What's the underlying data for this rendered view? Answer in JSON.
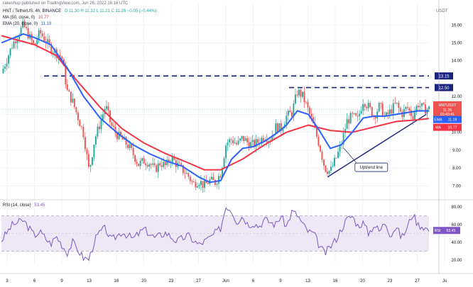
{
  "header": {
    "publisher": "rakeshup published on TradingView.com, Jun 26, 2022 16:16 UTC",
    "symbol": "HNT / TetherUS, 4h, BINANCE",
    "ohlc": "O 11.30  H 11.32  L 11.21  C 11.26  −0.05 (−0.44%)",
    "ma_legend": "MA (50, close, 0)",
    "ma_value": "10.77",
    "ema_legend": "EMA (20, close, 0)",
    "ema_value": "11.19",
    "rsi_legend": "RSI (14, close)",
    "rsi_value": "53.45",
    "currency": "USDT"
  },
  "colors": {
    "up": "#26a69a",
    "down": "#ef5350",
    "ema": "#2962ff",
    "sma": "#f23645",
    "rsi": "#7e57c2",
    "level": "#1a237e",
    "rsi_band": "#ede7f6"
  },
  "annotation": {
    "label": "Uptrend line"
  },
  "chart_data": [
    {
      "type": "candlestick",
      "title": "HNT / TetherUS, 4h",
      "price_axis_ticks": [
        "16.00",
        "15.00",
        "14.00",
        "12.00",
        "11.00",
        "10.00",
        "9.00",
        "8.00",
        "7.00"
      ],
      "price_axis_labels": [
        "13.15",
        "12.50",
        "HNTUSDT",
        "11.26",
        "03:43:41",
        "EMA",
        "11.19",
        "MA",
        "10.77"
      ],
      "horizontal_levels": [
        13.15,
        12.5
      ],
      "trendline": {
        "from": [
          "Jun 13",
          7.5
        ],
        "to": [
          "Jun 26",
          11.0
        ]
      },
      "time_ticks": [
        "3",
        "6",
        "9",
        "13",
        "16",
        "20",
        "23",
        "27",
        "Jun",
        "6",
        "9",
        "13",
        "16",
        "20",
        "23",
        "27",
        "Ju"
      ],
      "ylim": [
        6.3,
        17.2
      ],
      "close_path": [
        [
          0,
          13.3
        ],
        [
          2,
          14.9
        ],
        [
          4,
          16.0
        ],
        [
          6,
          14.8
        ],
        [
          7,
          15.6
        ],
        [
          9,
          14.7
        ],
        [
          11,
          14.2
        ],
        [
          12,
          12.3
        ],
        [
          13,
          11.7
        ],
        [
          15,
          9.9
        ],
        [
          16,
          7.8
        ],
        [
          17,
          9.6
        ],
        [
          18,
          10.5
        ],
        [
          19,
          11.5
        ],
        [
          20,
          10.4
        ],
        [
          21,
          9.9
        ],
        [
          22,
          9.6
        ],
        [
          23,
          9.3
        ],
        [
          24,
          8.8
        ],
        [
          25,
          8.2
        ],
        [
          26,
          8.4
        ],
        [
          27,
          8.3
        ],
        [
          28,
          7.9
        ],
        [
          29,
          8.3
        ],
        [
          30,
          8.1
        ],
        [
          31,
          8.6
        ],
        [
          32,
          8.2
        ],
        [
          33,
          7.9
        ],
        [
          34,
          7.6
        ],
        [
          35,
          7.1
        ],
        [
          36,
          7.3
        ],
        [
          37,
          7.0
        ],
        [
          38,
          7.3
        ],
        [
          39,
          7.2
        ],
        [
          40,
          7.7
        ],
        [
          41,
          9.4
        ],
        [
          42,
          9.6
        ],
        [
          43,
          9.3
        ],
        [
          44,
          9.7
        ],
        [
          45,
          9.4
        ],
        [
          46,
          9.3
        ],
        [
          47,
          9.5
        ],
        [
          48,
          9.8
        ],
        [
          49,
          9.6
        ],
        [
          50,
          10.3
        ],
        [
          51,
          10.2
        ],
        [
          52,
          10.9
        ],
        [
          53,
          11.1
        ],
        [
          54,
          12.3
        ],
        [
          55,
          12.0
        ],
        [
          56,
          11.2
        ],
        [
          57,
          10.3
        ],
        [
          58,
          9.3
        ],
        [
          59,
          8.0
        ],
        [
          60,
          7.8
        ],
        [
          61,
          8.5
        ],
        [
          62,
          9.3
        ],
        [
          63,
          10.6
        ],
        [
          64,
          10.9
        ],
        [
          65,
          10.7
        ],
        [
          66,
          11.8
        ],
        [
          67,
          11.4
        ],
        [
          68,
          10.9
        ],
        [
          69,
          11.5
        ],
        [
          70,
          10.8
        ],
        [
          71,
          11.2
        ],
        [
          72,
          11.6
        ],
        [
          73,
          11.0
        ],
        [
          74,
          11.4
        ],
        [
          75,
          10.9
        ],
        [
          76,
          11.6
        ],
        [
          77,
          11.3
        ],
        [
          78,
          11.3
        ]
      ],
      "ema20_path": [
        [
          0,
          15.0
        ],
        [
          4,
          15.5
        ],
        [
          6,
          15.3
        ],
        [
          9,
          14.9
        ],
        [
          12,
          13.6
        ],
        [
          15,
          12.0
        ],
        [
          18,
          10.8
        ],
        [
          21,
          10.0
        ],
        [
          24,
          9.3
        ],
        [
          27,
          8.8
        ],
        [
          30,
          8.4
        ],
        [
          33,
          8.1
        ],
        [
          36,
          7.5
        ],
        [
          38,
          7.2
        ],
        [
          40,
          7.3
        ],
        [
          42,
          8.5
        ],
        [
          44,
          9.1
        ],
        [
          46,
          9.2
        ],
        [
          48,
          9.5
        ],
        [
          50,
          9.9
        ],
        [
          52,
          10.4
        ],
        [
          54,
          11.2
        ],
        [
          56,
          11.0
        ],
        [
          58,
          10.1
        ],
        [
          60,
          9.1
        ],
        [
          62,
          9.3
        ],
        [
          64,
          10.0
        ],
        [
          66,
          10.8
        ],
        [
          68,
          10.9
        ],
        [
          70,
          10.9
        ],
        [
          72,
          11.0
        ],
        [
          74,
          11.1
        ],
        [
          76,
          11.2
        ],
        [
          78,
          11.19
        ]
      ],
      "sma50_path": [
        [
          0,
          15.4
        ],
        [
          6,
          14.9
        ],
        [
          10,
          14.3
        ],
        [
          14,
          12.8
        ],
        [
          18,
          11.4
        ],
        [
          22,
          10.2
        ],
        [
          26,
          9.4
        ],
        [
          30,
          8.8
        ],
        [
          34,
          8.3
        ],
        [
          37,
          7.9
        ],
        [
          40,
          7.9
        ],
        [
          44,
          8.5
        ],
        [
          48,
          9.3
        ],
        [
          52,
          10.0
        ],
        [
          56,
          10.4
        ],
        [
          60,
          10.1
        ],
        [
          64,
          10.0
        ],
        [
          68,
          10.3
        ],
        [
          72,
          10.6
        ],
        [
          76,
          10.7
        ],
        [
          78,
          10.77
        ]
      ]
    },
    {
      "type": "line",
      "title": "RSI (14, close)",
      "y_ticks": [
        "80.00",
        "60.00",
        "40.00",
        "20.00"
      ],
      "ylim": [
        15,
        85
      ],
      "band": [
        30,
        70
      ],
      "midline": 50,
      "path": [
        [
          0,
          42
        ],
        [
          2,
          60
        ],
        [
          4,
          65
        ],
        [
          6,
          48
        ],
        [
          7,
          52
        ],
        [
          9,
          38
        ],
        [
          10,
          47
        ],
        [
          12,
          28
        ],
        [
          13,
          40
        ],
        [
          15,
          22
        ],
        [
          16,
          21
        ],
        [
          17,
          42
        ],
        [
          18,
          52
        ],
        [
          19,
          56
        ],
        [
          20,
          42
        ],
        [
          22,
          52
        ],
        [
          24,
          44
        ],
        [
          26,
          55
        ],
        [
          28,
          45
        ],
        [
          30,
          51
        ],
        [
          32,
          41
        ],
        [
          34,
          48
        ],
        [
          36,
          37
        ],
        [
          38,
          45
        ],
        [
          40,
          56
        ],
        [
          41,
          82
        ],
        [
          42,
          76
        ],
        [
          43,
          63
        ],
        [
          44,
          70
        ],
        [
          45,
          60
        ],
        [
          46,
          62
        ],
        [
          47,
          58
        ],
        [
          48,
          66
        ],
        [
          50,
          60
        ],
        [
          51,
          70
        ],
        [
          52,
          58
        ],
        [
          53,
          75
        ],
        [
          54,
          71
        ],
        [
          55,
          60
        ],
        [
          56,
          52
        ],
        [
          57,
          50
        ],
        [
          58,
          36
        ],
        [
          59,
          27
        ],
        [
          60,
          35
        ],
        [
          61,
          43
        ],
        [
          62,
          55
        ],
        [
          63,
          66
        ],
        [
          64,
          70
        ],
        [
          65,
          59
        ],
        [
          66,
          62
        ],
        [
          67,
          50
        ],
        [
          68,
          60
        ],
        [
          69,
          52
        ],
        [
          70,
          64
        ],
        [
          71,
          48
        ],
        [
          72,
          58
        ],
        [
          73,
          45
        ],
        [
          74,
          56
        ],
        [
          75,
          73
        ],
        [
          76,
          60
        ],
        [
          77,
          58
        ],
        [
          78,
          53.45
        ]
      ]
    }
  ]
}
